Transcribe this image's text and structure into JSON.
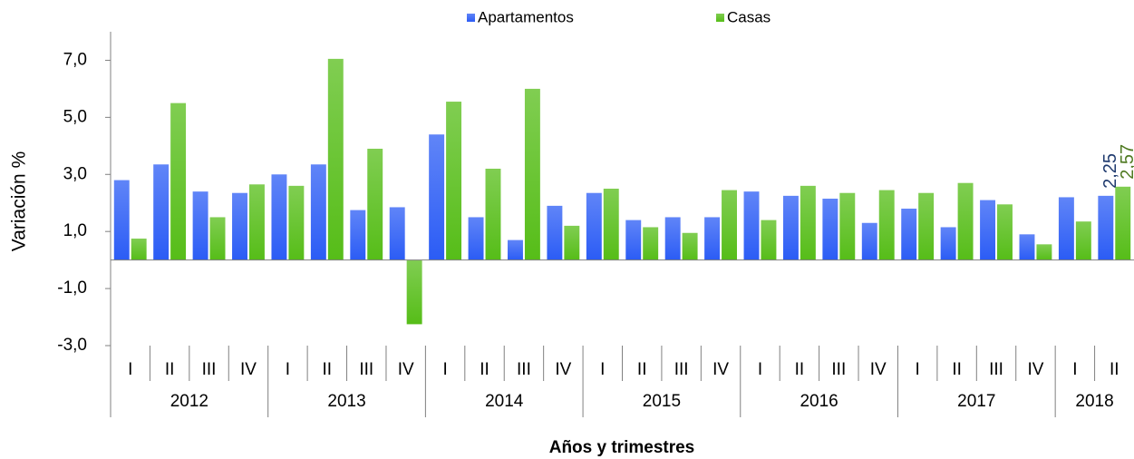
{
  "chart_data": {
    "type": "bar",
    "y_label": "Variación %",
    "x_label": "Años y trimestres",
    "groups": [
      {
        "name": "2012",
        "categories": [
          "I",
          "II",
          "III",
          "IV"
        ]
      },
      {
        "name": "2013",
        "categories": [
          "I",
          "II",
          "III",
          "IV"
        ]
      },
      {
        "name": "2014",
        "categories": [
          "I",
          "II",
          "III",
          "IV"
        ]
      },
      {
        "name": "2015",
        "categories": [
          "I",
          "II",
          "III",
          "IV"
        ]
      },
      {
        "name": "2016",
        "categories": [
          "I",
          "II",
          "III",
          "IV"
        ]
      },
      {
        "name": "2017",
        "categories": [
          "I",
          "II",
          "III",
          "IV"
        ]
      },
      {
        "name": "2018",
        "categories": [
          "I",
          "II"
        ]
      }
    ],
    "series": [
      {
        "name": "Apartamentos",
        "color": "#2b5cf5",
        "label_color": "#1f3a6e",
        "values": [
          2.8,
          3.35,
          2.4,
          2.35,
          3.0,
          3.35,
          1.75,
          1.85,
          4.4,
          1.5,
          0.7,
          1.9,
          2.35,
          1.4,
          1.5,
          1.5,
          2.4,
          2.25,
          2.15,
          1.3,
          1.8,
          1.15,
          2.1,
          0.9,
          2.2,
          2.25
        ],
        "value_labels": [
          null,
          null,
          null,
          null,
          null,
          null,
          null,
          null,
          null,
          null,
          null,
          null,
          null,
          null,
          null,
          null,
          null,
          null,
          null,
          null,
          null,
          null,
          null,
          null,
          null,
          "2,25"
        ]
      },
      {
        "name": "Casas",
        "color": "#56bd18",
        "label_color": "#4f7a22",
        "values": [
          0.75,
          5.5,
          1.5,
          2.65,
          2.6,
          7.05,
          3.9,
          -2.25,
          5.55,
          3.2,
          6.0,
          1.2,
          2.5,
          1.15,
          0.95,
          2.45,
          1.4,
          2.6,
          2.35,
          2.45,
          2.35,
          2.7,
          1.95,
          0.55,
          1.35,
          2.57
        ],
        "value_labels": [
          null,
          null,
          null,
          null,
          null,
          null,
          null,
          null,
          null,
          null,
          null,
          null,
          null,
          null,
          null,
          null,
          null,
          null,
          null,
          null,
          null,
          null,
          null,
          null,
          null,
          "2,57"
        ]
      }
    ],
    "ylim": [
      -3,
      8
    ],
    "yticks": [
      {
        "value": -3,
        "label": "-3,0"
      },
      {
        "value": -1,
        "label": "-1,0"
      },
      {
        "value": 1,
        "label": "1,0"
      },
      {
        "value": 3,
        "label": "3,0"
      },
      {
        "value": 5,
        "label": "5,0"
      },
      {
        "value": 7,
        "label": "7,0"
      }
    ],
    "legend": "top"
  }
}
